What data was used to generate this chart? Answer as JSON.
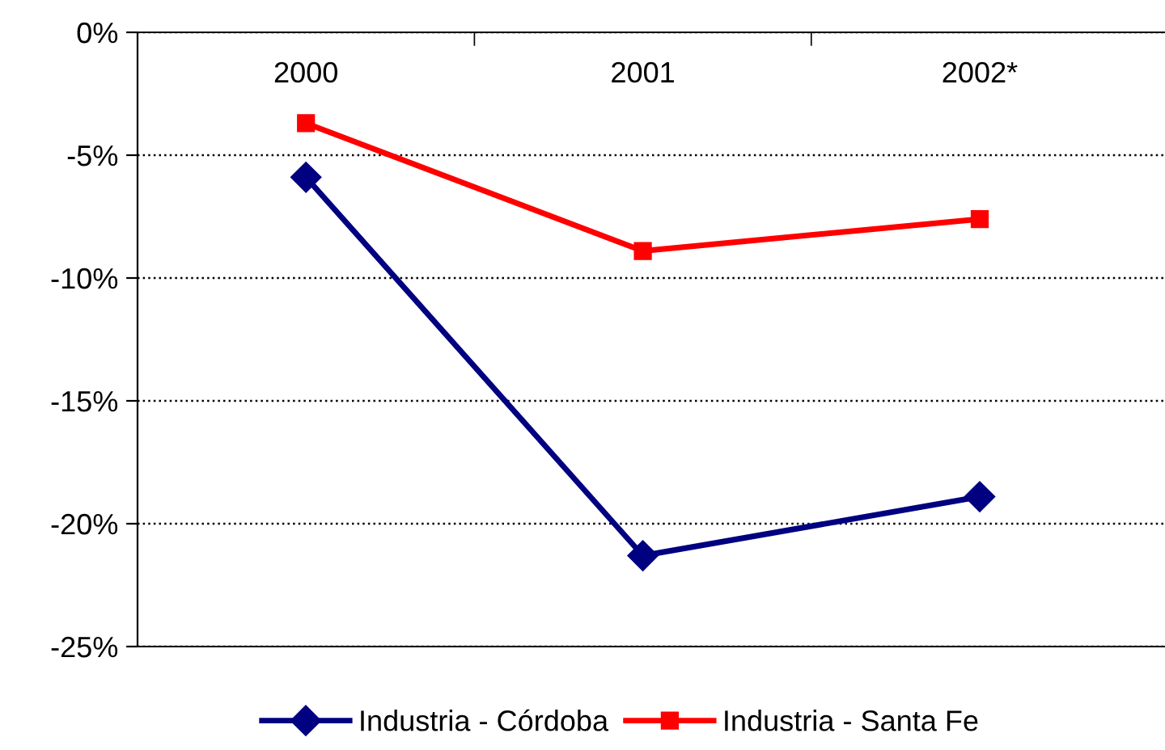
{
  "chart_data": {
    "type": "line",
    "categories": [
      "2000",
      "2001",
      "2002*"
    ],
    "series": [
      {
        "name": "Industria - Córdoba",
        "color": "#000080",
        "marker": "diamond",
        "values": [
          -5.9,
          -21.3,
          -18.9
        ]
      },
      {
        "name": "Industria - Santa Fe",
        "color": "#ff0000",
        "marker": "square",
        "values": [
          -3.7,
          -8.9,
          -7.6
        ]
      }
    ],
    "ylim": [
      -25,
      0
    ],
    "yticks": [
      {
        "value": -25,
        "label": "-25%"
      },
      {
        "value": -20,
        "label": "-20%"
      },
      {
        "value": -15,
        "label": "-15%"
      },
      {
        "value": -10,
        "label": "-10%"
      },
      {
        "value": -5,
        "label": "-5%"
      },
      {
        "value": 0,
        "label": "0%"
      }
    ],
    "grid": "y",
    "legend": "bottom",
    "line_style": "solid"
  }
}
